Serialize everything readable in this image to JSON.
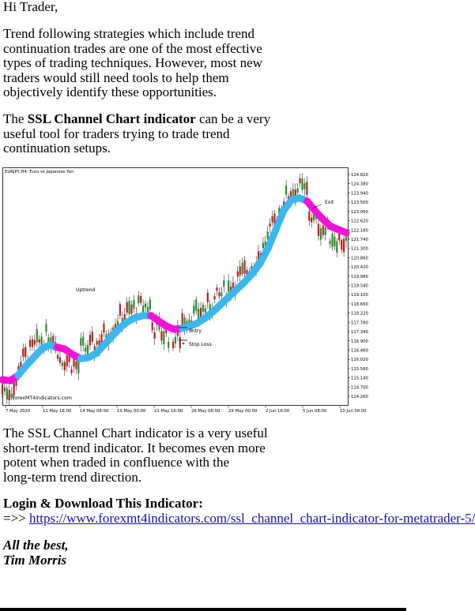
{
  "greeting": "Hi Trader,",
  "para1": [
    "Trend following strategies which include trend",
    "continuation trades are one of the most effective",
    "types of trading techniques. However, most new",
    "traders would still need tools to help them",
    "objectively identify these opportunities."
  ],
  "para2": {
    "prefix": "The ",
    "strong": "SSL Channel Chart indicator",
    "line1_suffix": " can be a very",
    "line2": "useful tool for traders trying to trade trend",
    "line3": "continuation setups."
  },
  "para3": [
    "The SSL Channel Chart indicator is a very useful",
    "short-term trend indicator. It becomes even more",
    "potent when traded in confluence with the",
    "long-term trend direction."
  ],
  "download": {
    "heading": "Login & Download This Indicator:",
    "arrow": "=>> ",
    "link": "https://www.forexmt4indicators.com/ssl_channel_chart-indicator-for-metatrader-5/"
  },
  "signoff": "All the best,",
  "author": "Tim Morris",
  "chart": {
    "header": "EURJPY,H4:  Euro vs Japanese Yen",
    "watermark": "© ForexMT4Indicators.com",
    "labels": {
      "uptrend": "Uptrend",
      "entry": "Entry",
      "stop_loss": "Stop Loss",
      "exit": "Exit"
    },
    "colors": {
      "bull_band": "#3bb7ee",
      "bear_band": "#f511d8",
      "bull_candle": "#2e8b2e",
      "bear_candle": "#b22222"
    },
    "y_ticks": [
      "124.820",
      "124.380",
      "123.940",
      "123.500",
      "123.060",
      "122.620",
      "122.180",
      "121.740",
      "121.300",
      "120.860",
      "120.420",
      "119.980",
      "119.540",
      "119.100",
      "118.660",
      "118.220",
      "117.780",
      "117.340",
      "116.900",
      "116.460",
      "116.020",
      "115.580",
      "115.140",
      "114.700",
      "114.260"
    ],
    "x_ticks": [
      "7 May 2020",
      "11 May 16:00",
      "14 May 08:00",
      "19 May 00:00",
      "21 May 16:00",
      "26 May 08:00",
      "29 May 00:00",
      "2 Jun 16:00",
      "5 Jun 08:00",
      "10 Jun 00:00"
    ]
  },
  "chart_data": {
    "type": "line",
    "title": "EURJPY,H4:  Euro vs Japanese Yen",
    "ylim": [
      114.26,
      124.82
    ],
    "x_ticks": [
      "7 May 2020",
      "11 May 16:00",
      "14 May 08:00",
      "19 May 00:00",
      "21 May 16:00",
      "26 May 08:00",
      "29 May 00:00",
      "2 Jun 16:00",
      "5 Jun 08:00",
      "10 Jun 00:00"
    ],
    "series": [
      {
        "values": [
          115.05,
          115.0,
          115.25,
          115.7,
          116.1,
          116.5,
          116.7,
          116.6,
          116.5,
          116.25,
          116.05,
          116.1,
          116.3,
          116.7,
          117.1,
          117.5,
          117.8,
          118.0,
          118.1,
          118.1,
          117.85,
          117.6,
          117.45,
          117.5,
          117.6,
          117.75,
          118.0,
          118.3,
          118.65,
          119.0,
          119.35,
          119.7,
          120.1,
          120.6,
          121.3,
          122.2,
          123.1,
          123.6,
          123.7,
          123.55,
          123.1,
          122.7,
          122.35,
          122.2,
          122.05
        ],
        "trend": [
          "down",
          "down",
          "up",
          "up",
          "up",
          "up",
          "up",
          "down",
          "down",
          "down",
          "up",
          "up",
          "up",
          "up",
          "up",
          "up",
          "up",
          "up",
          "up",
          "down",
          "down",
          "down",
          "down",
          "up",
          "up",
          "up",
          "up",
          "up",
          "up",
          "up",
          "up",
          "up",
          "up",
          "up",
          "up",
          "up",
          "up",
          "up",
          "up",
          "down",
          "down",
          "down",
          "down",
          "down",
          "down"
        ]
      }
    ]
  }
}
